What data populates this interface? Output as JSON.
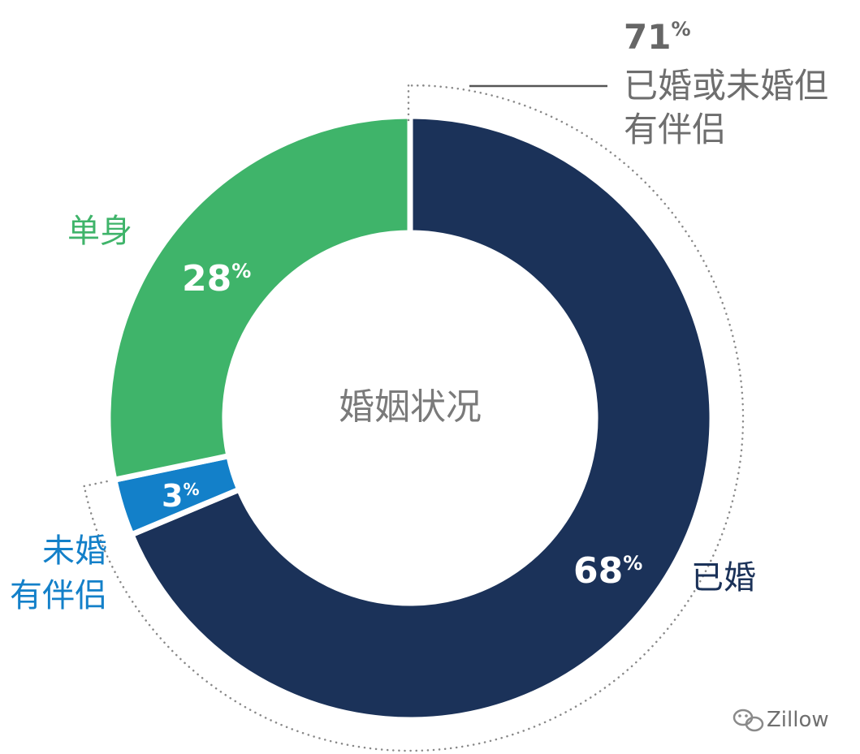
{
  "chart_data": {
    "type": "pie",
    "title": "婚姻状况",
    "categories": [
      "已婚",
      "未婚有伴侣",
      "单身"
    ],
    "values": [
      68,
      3,
      28
    ],
    "value_labels": [
      {
        "number": "68",
        "unit": "%"
      },
      {
        "number": "3",
        "unit": "%"
      },
      {
        "number": "28",
        "unit": "%"
      }
    ],
    "category_labels": [
      {
        "lines": [
          "已婚"
        ]
      },
      {
        "lines": [
          "未婚",
          "有伴侣"
        ]
      },
      {
        "lines": [
          "单身"
        ]
      }
    ],
    "colors": [
      "#1b3259",
      "#1380c9",
      "#3fb46a"
    ],
    "annotation": {
      "number": "71",
      "unit": "%",
      "lines": [
        "已婚或未婚但",
        "有伴侣"
      ]
    },
    "center_label": "婚姻状况"
  },
  "watermark": {
    "text": "Zillow",
    "icon": "wechat-icon"
  },
  "colors": {
    "married": "#1b3259",
    "partnered": "#1380c9",
    "single": "#3fb46a",
    "center_text": "#7a7a7a",
    "annotation_text": "#6e6e6e",
    "single_label": "#3fb46a",
    "partnered_label": "#1380c9",
    "married_label": "#1b3259"
  }
}
